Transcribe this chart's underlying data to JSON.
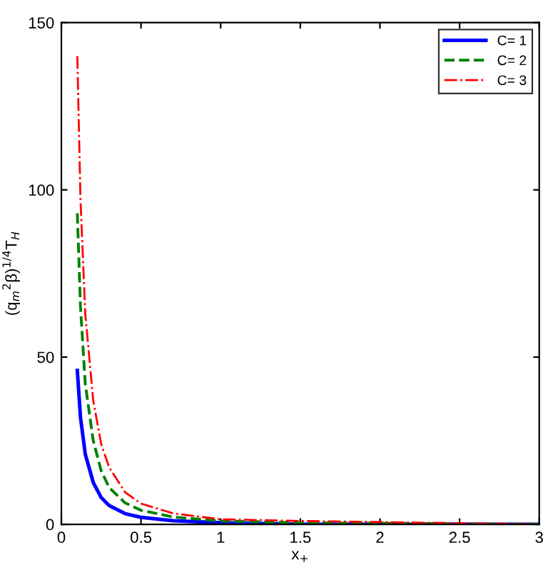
{
  "chart_data": {
    "type": "line",
    "xlabel": "x$_{+}$",
    "ylabel": "(q$_{m}$$^{2}$β)$^{1/4}$T$_{H}$",
    "x": [
      0.1,
      0.12,
      0.15,
      0.2,
      0.25,
      0.3,
      0.4,
      0.5,
      0.7,
      1,
      1.5,
      3
    ],
    "series": [
      {
        "name": "C= 1",
        "color": "#0000ff",
        "line_style": "solid",
        "values": [
          46,
          32,
          21,
          12.5,
          8,
          5.6,
          3.2,
          2.1,
          1.1,
          0.5,
          0,
          0
        ]
      },
      {
        "name": "C= 2",
        "color": "#008000",
        "line_style": "dashed",
        "values": [
          93,
          65,
          42,
          25,
          16,
          11,
          6.4,
          4.2,
          2.2,
          1,
          0.5,
          0
        ]
      },
      {
        "name": "C= 3",
        "color": "#ff0000",
        "line_style": "dashdot",
        "values": [
          140,
          97,
          63,
          37,
          24,
          17,
          9.6,
          6.2,
          3.3,
          1.5,
          1,
          0
        ]
      }
    ],
    "xlim": [
      0,
      3
    ],
    "ylim": [
      0,
      150
    ],
    "xticks": [
      0,
      0.5,
      1,
      1.5,
      2,
      2.5,
      3
    ],
    "yticks": [
      0,
      50,
      100,
      150
    ],
    "grid": false,
    "legend": "top right",
    "marker": "none"
  }
}
